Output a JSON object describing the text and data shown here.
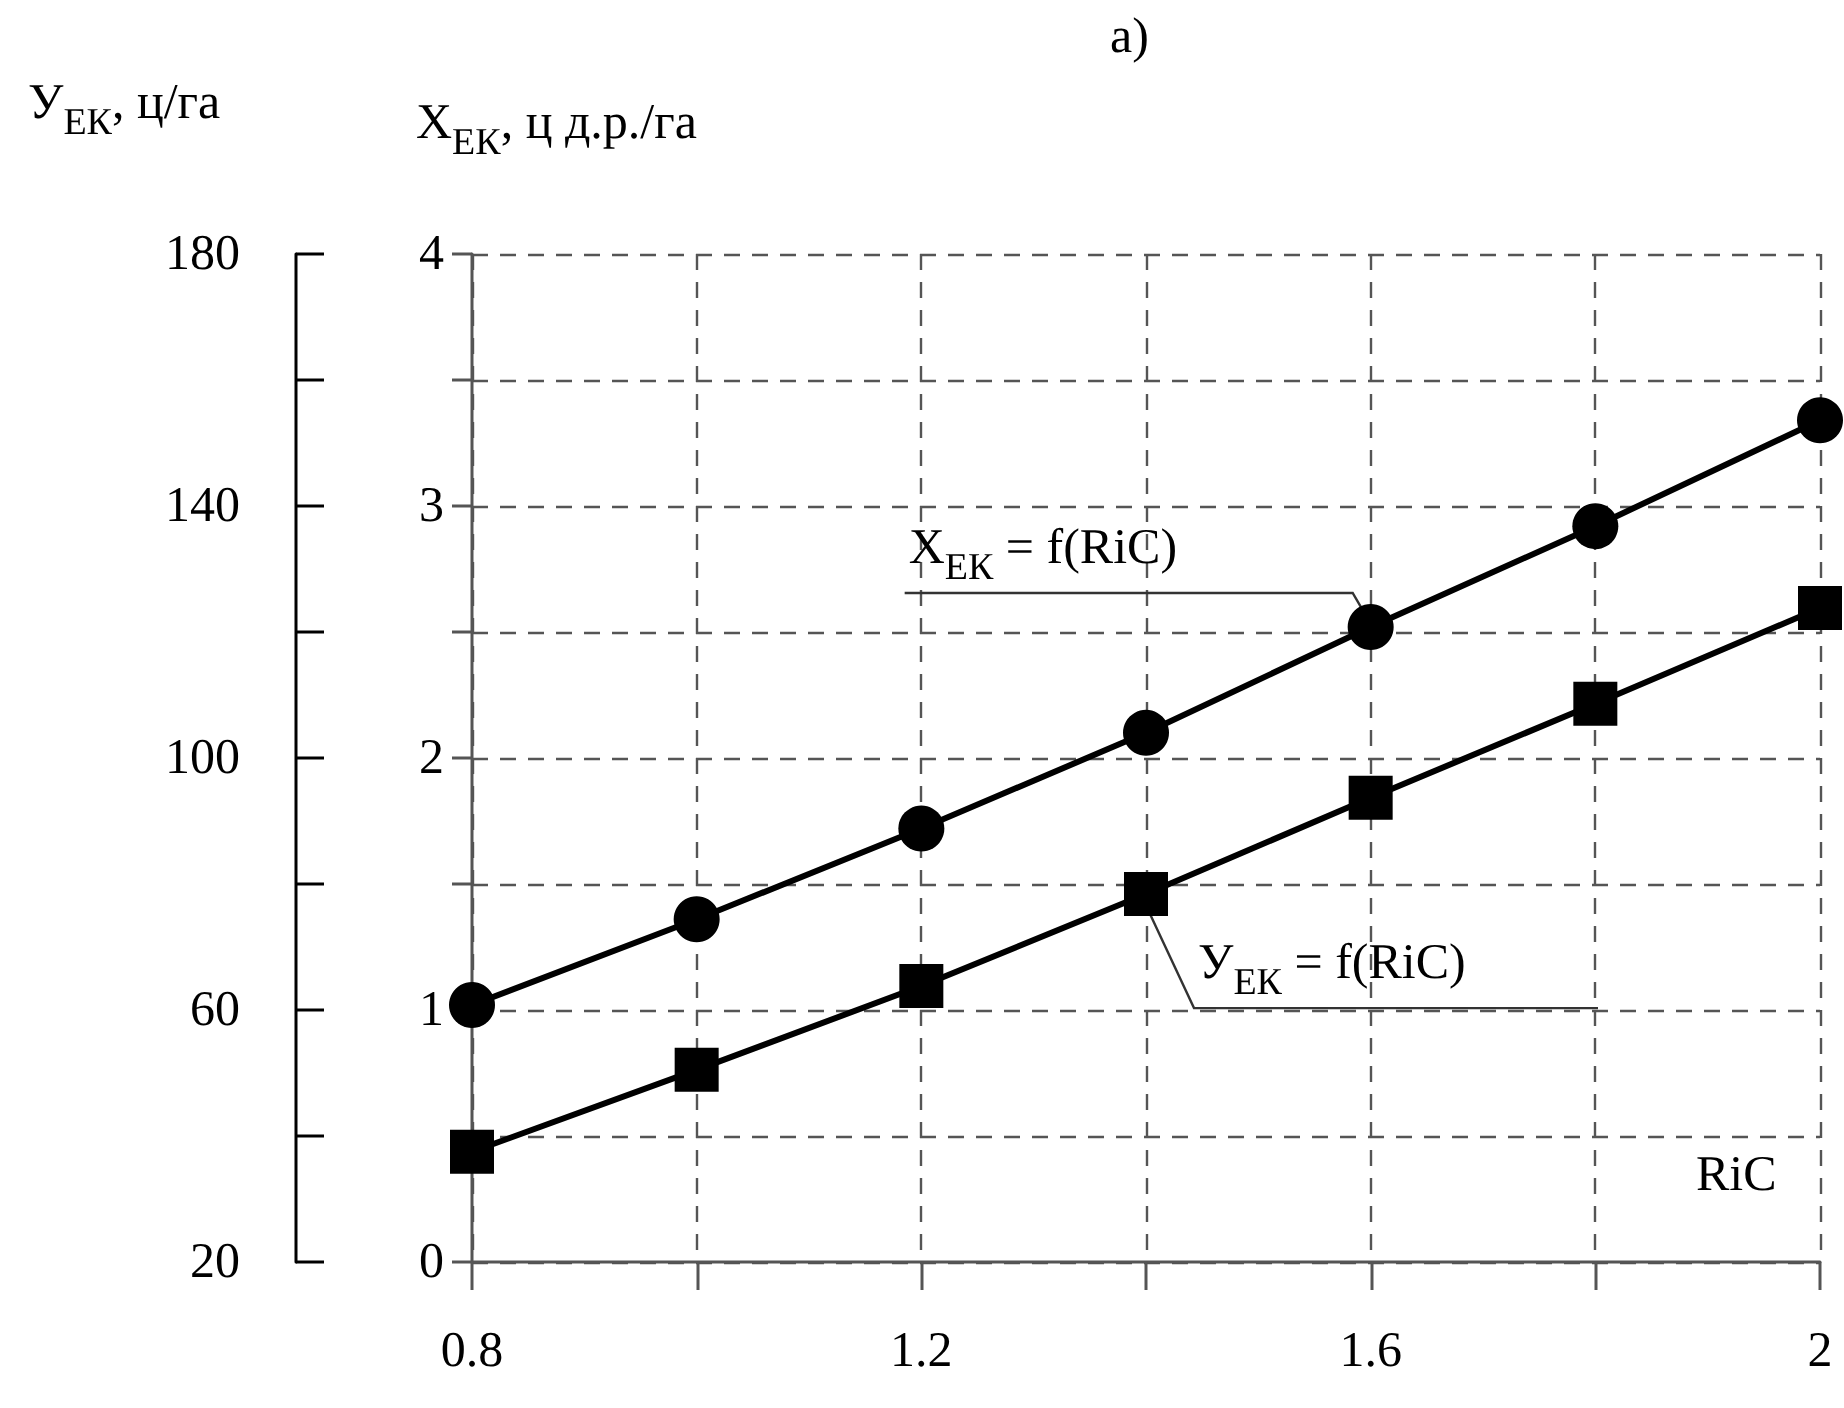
{
  "chart_data": {
    "type": "line",
    "title": "а)",
    "xlabel": "RiC",
    "ylabel": "Х$_{ЕК}$, ц д.р./га",
    "y2label": "У$_{ЕК}$, ц/га",
    "x": [
      0.8,
      1.0,
      1.2,
      1.4,
      1.6,
      1.8,
      2.0
    ],
    "series": [
      {
        "color": "#000000",
        "marker": "circle",
        "values": [
          1.02,
          1.36,
          1.72,
          2.1,
          2.52,
          2.92,
          3.34
        ]
      },
      {
        "color": "#000000",
        "marker": "square",
        "axis": "y2",
        "values": [
          37.5,
          50.5,
          63.8,
          78.4,
          93.7,
          108.6,
          123.8
        ]
      }
    ],
    "xlim": [
      0.8,
      2.0
    ],
    "xticks": [
      0.8,
      {
        "value": 1.0,
        "label": null
      },
      1.2,
      {
        "value": 1.4,
        "label": null
      },
      1.6,
      {
        "value": 1.8,
        "label": null
      },
      2
    ],
    "ylim": [
      0,
      4
    ],
    "yticks": [
      0,
      {
        "value": 0.5,
        "label": null
      },
      1,
      {
        "value": 1.5,
        "label": null
      },
      2,
      {
        "value": 2.5,
        "label": null
      },
      3,
      {
        "value": 3.5,
        "label": null
      },
      4
    ],
    "y2lim": [
      20,
      180
    ],
    "y2ticks": [
      20,
      {
        "value": 40,
        "label": null
      },
      60,
      {
        "value": 80,
        "label": null
      },
      100,
      {
        "value": 120,
        "label": null
      },
      140,
      {
        "value": 160,
        "label": null
      },
      180
    ],
    "annotations": [
      {
        "text": "Х$_{ЕК}$ = f(RiC)",
        "x": 1.6,
        "y": 2.52
      },
      "У$_{ЕК}$ = f(RiC)"
    ],
    "grid": true,
    "line_style": "solid"
  }
}
